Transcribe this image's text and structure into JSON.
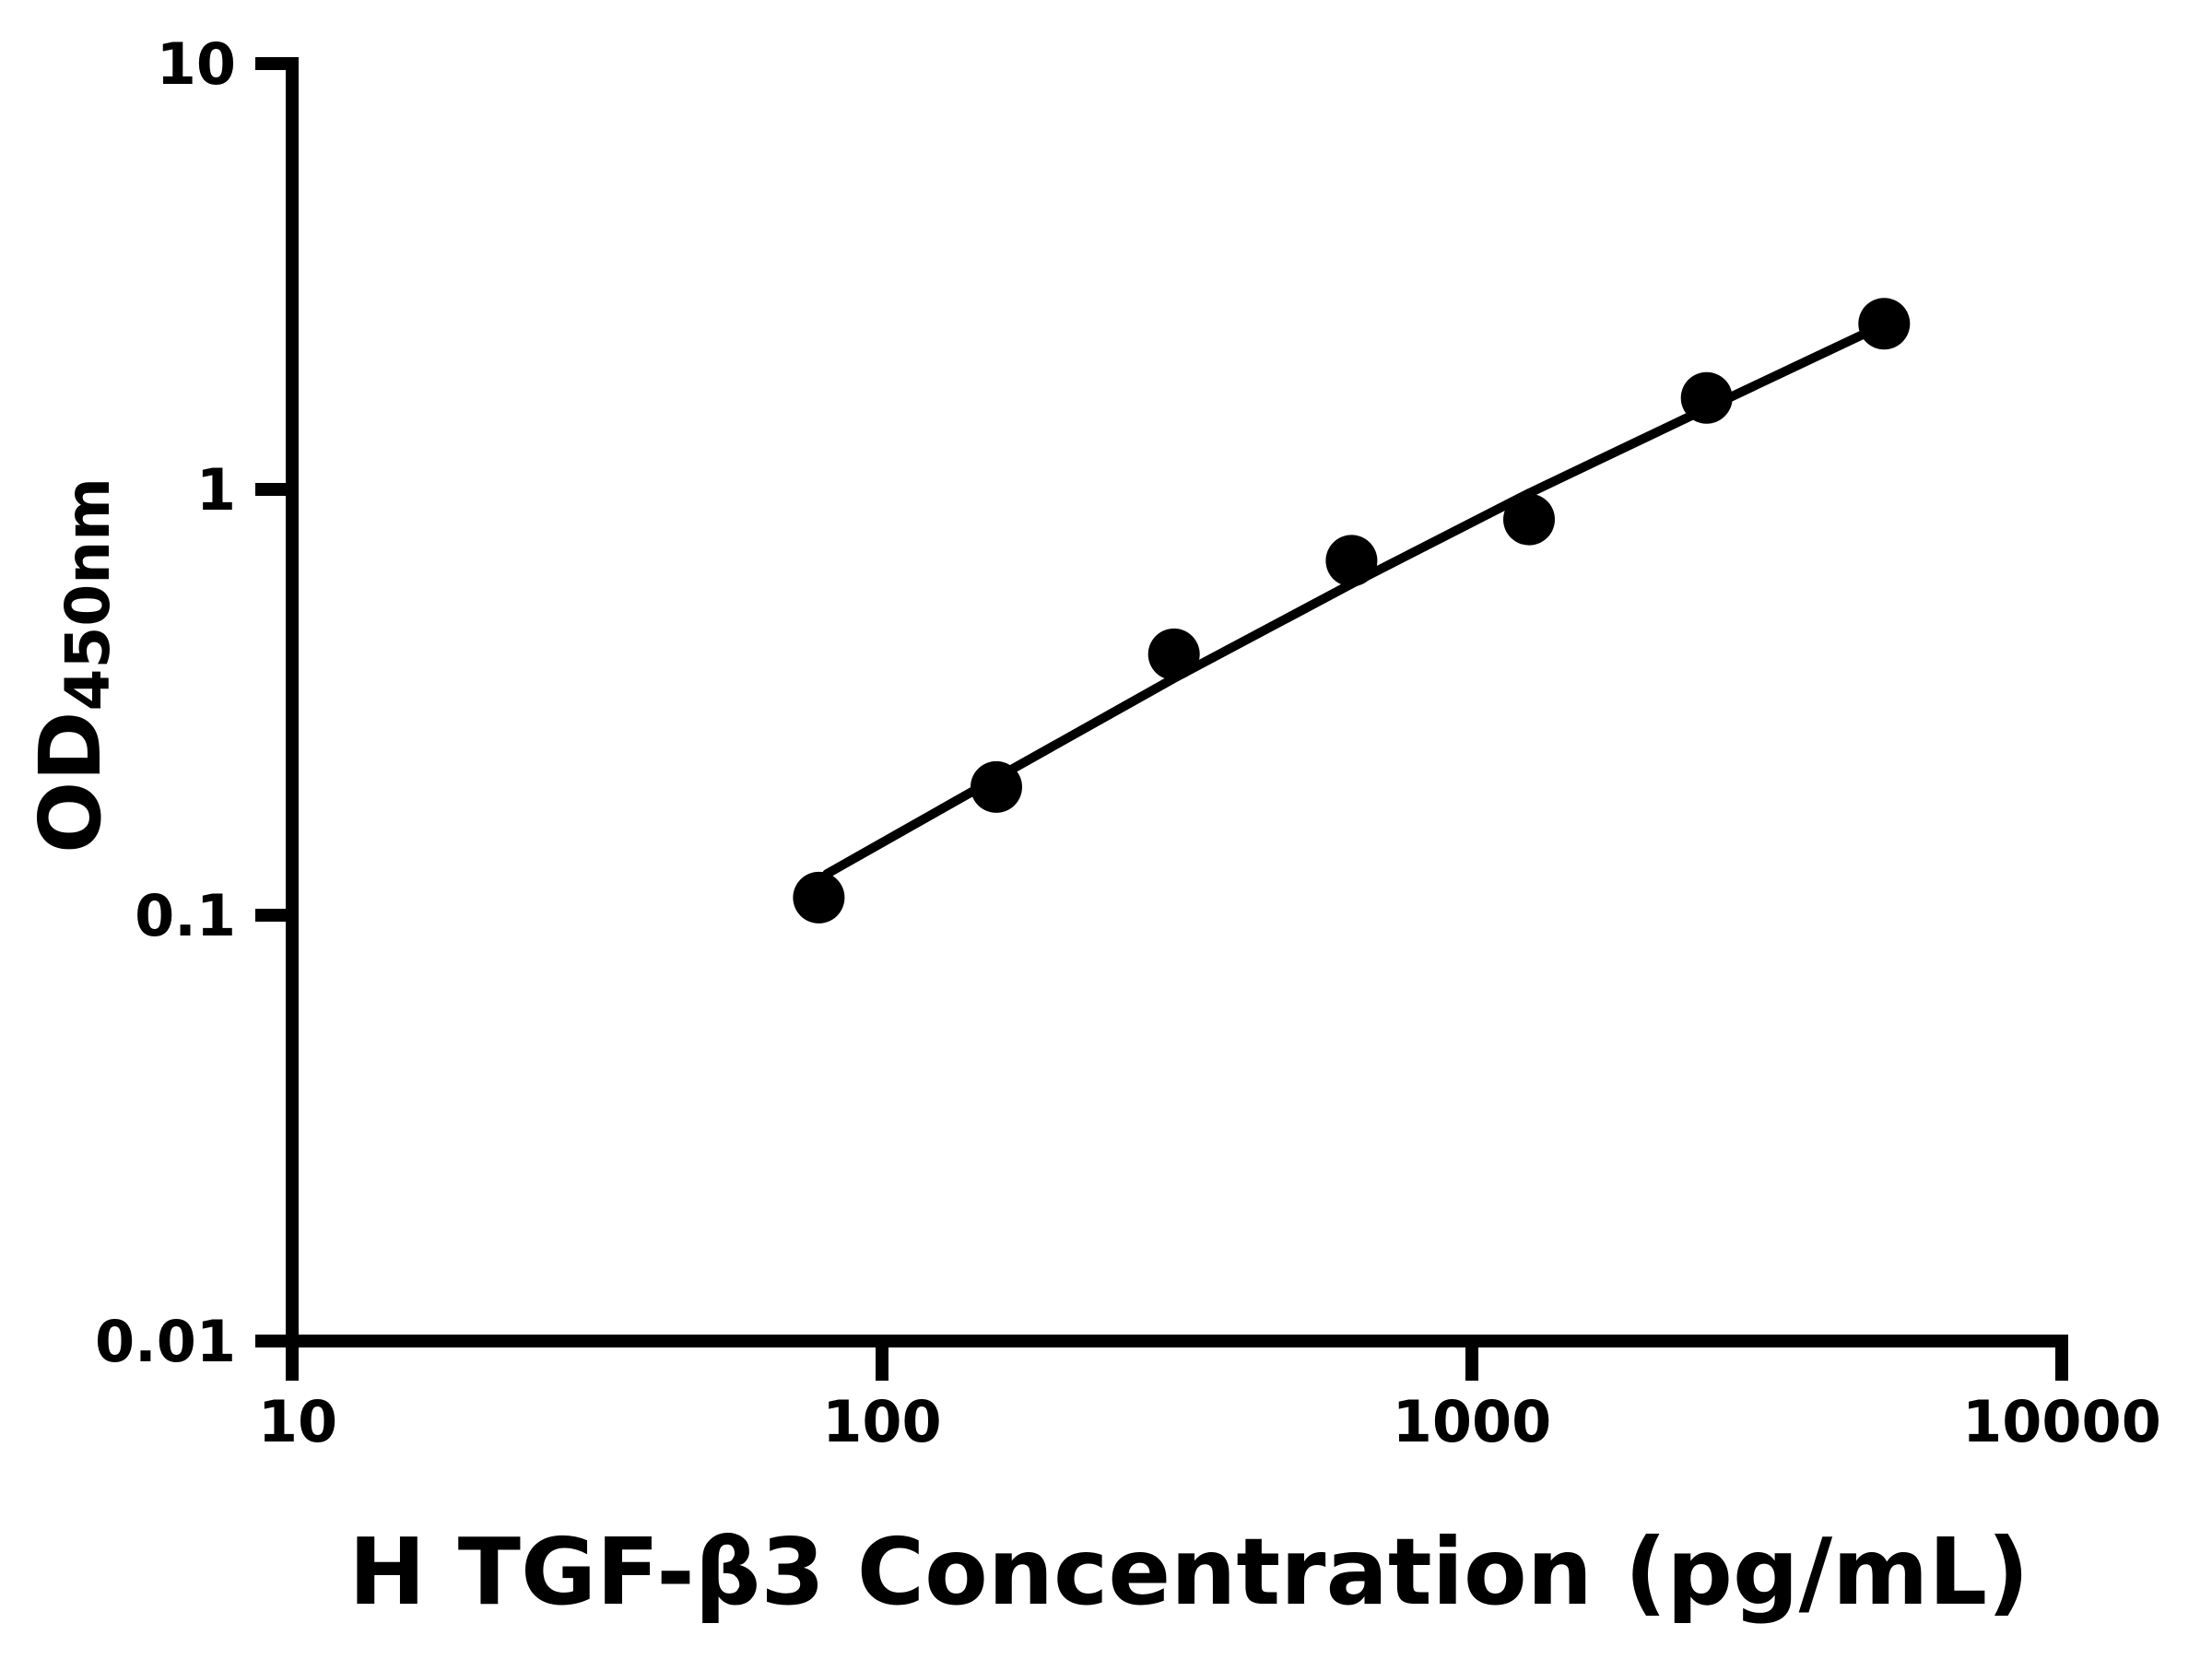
{
  "page": {
    "background_color": "#ffffff",
    "ink_color": "#000000"
  },
  "chart_data": {
    "type": "scatter",
    "title": "",
    "xlabel": "H TGF-β3 Concentration (pg/mL)",
    "ylabel_base": "OD",
    "ylabel_sub": "450nm",
    "x_scale": "log10",
    "y_scale": "log10",
    "xlim": [
      10,
      10000
    ],
    "ylim": [
      0.01,
      10
    ],
    "grid": false,
    "legend_position": "none",
    "x_ticks": [
      {
        "value": 10,
        "label": "10"
      },
      {
        "value": 100,
        "label": "100"
      },
      {
        "value": 1000,
        "label": "1000"
      },
      {
        "value": 10000,
        "label": "10000"
      }
    ],
    "y_ticks": [
      {
        "value": 0.01,
        "label": "0.01"
      },
      {
        "value": 0.1,
        "label": "0.1"
      },
      {
        "value": 1,
        "label": "1"
      },
      {
        "value": 10,
        "label": "10"
      }
    ],
    "series": [
      {
        "name": "standard-points",
        "marker": "filled-circle",
        "marker_color": "#000000",
        "points": [
          {
            "x": 78.125,
            "y": 0.11
          },
          {
            "x": 156.25,
            "y": 0.2
          },
          {
            "x": 312.5,
            "y": 0.41
          },
          {
            "x": 625,
            "y": 0.68
          },
          {
            "x": 1250,
            "y": 0.85
          },
          {
            "x": 2500,
            "y": 1.64
          },
          {
            "x": 5000,
            "y": 2.45
          }
        ]
      }
    ],
    "fit_line": {
      "name": "standard-curve-fit",
      "color": "#000000",
      "points": [
        {
          "x": 80.6,
          "y": 0.125
        },
        {
          "x": 156.25,
          "y": 0.21
        },
        {
          "x": 312.5,
          "y": 0.36
        },
        {
          "x": 625,
          "y": 0.6
        },
        {
          "x": 1250,
          "y": 0.98
        },
        {
          "x": 2500,
          "y": 1.55
        },
        {
          "x": 5000,
          "y": 2.44
        }
      ]
    }
  }
}
